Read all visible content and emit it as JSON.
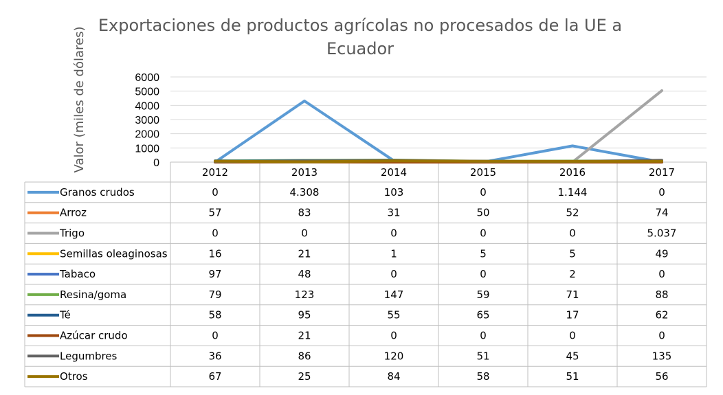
{
  "chart_data": {
    "type": "line",
    "title_line1": "Exportaciones de productos agrícolas no procesados de la UE a",
    "title_line2": "Ecuador",
    "ylabel": "Valor (miles de dólares)",
    "ylim": [
      0,
      6000
    ],
    "yticks": [
      "6000",
      "5000",
      "4000",
      "3000",
      "2000",
      "1000",
      "0"
    ],
    "grid": true,
    "legend": "data-table",
    "categories": [
      "2012",
      "2013",
      "2014",
      "2015",
      "2016",
      "2017"
    ],
    "series": [
      {
        "name": "Granos crudos",
        "color": "#5B9BD5",
        "values": [
          0,
          4308,
          103,
          0,
          1144,
          0
        ],
        "labels": [
          "0",
          "4.308",
          "103",
          "0",
          "1.144",
          "0"
        ]
      },
      {
        "name": "Arroz",
        "color": "#ED7D31",
        "values": [
          57,
          83,
          31,
          50,
          52,
          74
        ],
        "labels": [
          "57",
          "83",
          "31",
          "50",
          "52",
          "74"
        ]
      },
      {
        "name": "Trigo",
        "color": "#A5A5A5",
        "values": [
          0,
          0,
          0,
          0,
          0,
          5037
        ],
        "labels": [
          "0",
          "0",
          "0",
          "0",
          "0",
          "5.037"
        ]
      },
      {
        "name": "Semillas oleaginosas",
        "color": "#FFC000",
        "values": [
          16,
          21,
          1,
          5,
          5,
          49
        ],
        "labels": [
          "16",
          "21",
          "1",
          "5",
          "5",
          "49"
        ]
      },
      {
        "name": "Tabaco",
        "color": "#4472C4",
        "values": [
          97,
          48,
          0,
          0,
          2,
          0
        ],
        "labels": [
          "97",
          "48",
          "0",
          "0",
          "2",
          "0"
        ]
      },
      {
        "name": "Resina/goma",
        "color": "#70AD47",
        "values": [
          79,
          123,
          147,
          59,
          71,
          88
        ],
        "labels": [
          "79",
          "123",
          "147",
          "59",
          "71",
          "88"
        ]
      },
      {
        "name": "Té",
        "color": "#255E91",
        "values": [
          58,
          95,
          55,
          65,
          17,
          62
        ],
        "labels": [
          "58",
          "95",
          "55",
          "65",
          "17",
          "62"
        ]
      },
      {
        "name": "Azúcar crudo",
        "color": "#9E480E",
        "values": [
          0,
          21,
          0,
          0,
          0,
          0
        ],
        "labels": [
          "0",
          "21",
          "0",
          "0",
          "0",
          "0"
        ]
      },
      {
        "name": "Legumbres",
        "color": "#636363",
        "values": [
          36,
          86,
          120,
          51,
          45,
          135
        ],
        "labels": [
          "36",
          "86",
          "120",
          "51",
          "45",
          "135"
        ]
      },
      {
        "name": "Otros",
        "color": "#997300",
        "values": [
          67,
          25,
          84,
          58,
          51,
          56
        ],
        "labels": [
          "67",
          "25",
          "84",
          "58",
          "51",
          "56"
        ]
      }
    ]
  }
}
